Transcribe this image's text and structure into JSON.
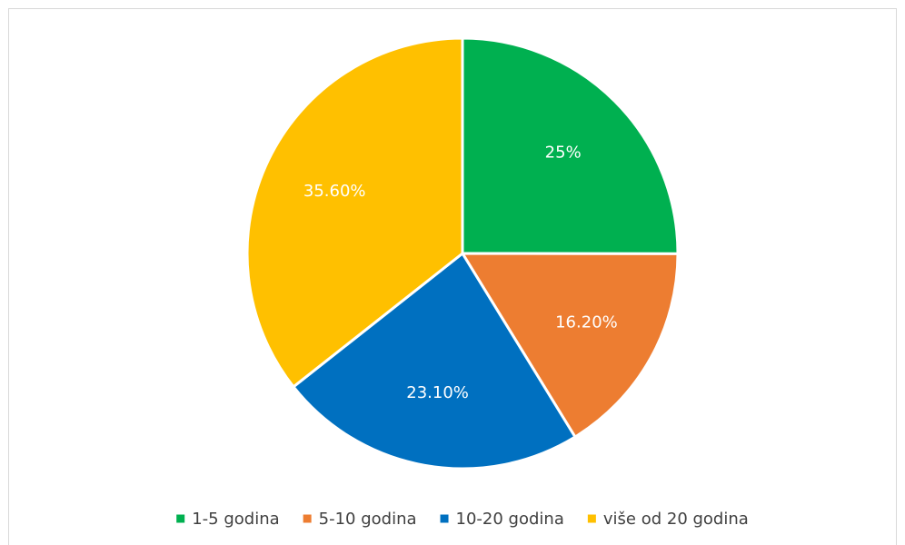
{
  "chart_data": {
    "type": "pie",
    "categories": [
      "1-5 godina",
      "5-10 godina",
      "10-20 godina",
      "više od 20 godina"
    ],
    "values": [
      25,
      16.2,
      23.1,
      35.6
    ],
    "labels": [
      "25%",
      "16.20%",
      "23.10%",
      "35.60%"
    ],
    "colors": [
      "#00b050",
      "#ed7d31",
      "#0070c0",
      "#ffc000"
    ],
    "legend_position": "bottom",
    "start_angle": "12-o'clock",
    "direction": "clockwise"
  }
}
